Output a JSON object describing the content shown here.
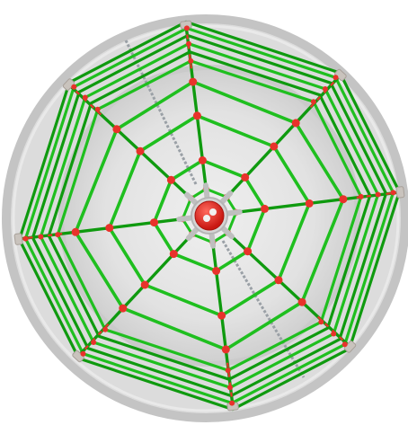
{
  "scene": {
    "subject": "spider-web-rope-climbing-net",
    "view": "top-down",
    "spokes": 8,
    "rope_rings": 10,
    "chains": 2,
    "colors": {
      "background": "#ffffff",
      "frame_ring": "#c8c8c8",
      "ground_outer": "#e3e3e3",
      "ground_inner": "#d9d9d9",
      "rope": "#1fbf1f",
      "rope_dark": "#0f9a0f",
      "connector": "#e8322b",
      "clamp": "#c9c3bd",
      "chain": "#9aa0a6",
      "hub": "#e5251f",
      "hub_plate": "#bfbfbf"
    }
  }
}
